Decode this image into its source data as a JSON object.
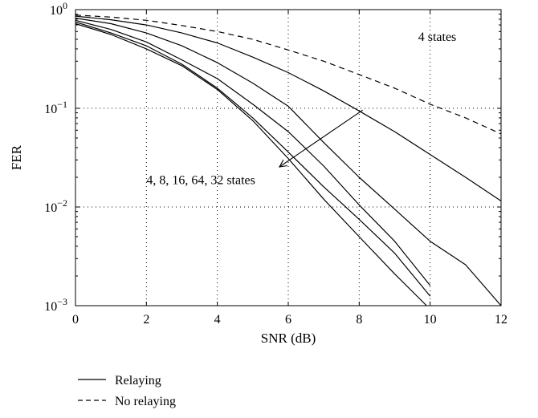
{
  "chart_data": {
    "type": "line",
    "xlabel": "SNR (dB)",
    "ylabel": "FER",
    "xlim": [
      0,
      12
    ],
    "ylim": [
      0.001,
      1
    ],
    "yscale": "log",
    "grid": true,
    "xticks": [
      "0",
      "2",
      "4",
      "6",
      "8",
      "10",
      "12"
    ],
    "yticks": [
      {
        "base": "10",
        "exp": "0",
        "value": 1
      },
      {
        "base": "10",
        "exp": "−1",
        "value": 0.1
      },
      {
        "base": "10",
        "exp": "−2",
        "value": 0.01
      },
      {
        "base": "10",
        "exp": "−3",
        "value": 0.001
      }
    ],
    "annotations": {
      "no_relaying_label": "4 states",
      "relaying_label": "4, 8, 16, 64, 32 states",
      "arrow_from": [
        8.1,
        0.096
      ],
      "arrow_to": [
        5.75,
        0.0255
      ]
    },
    "legend": {
      "placement": "bottom-left",
      "entries": [
        {
          "label": "Relaying",
          "style": "solid"
        },
        {
          "label": "No relaying",
          "style": "dashed"
        }
      ]
    },
    "series": [
      {
        "style": "dashed",
        "x": [
          0,
          1,
          2,
          3,
          4,
          5,
          6,
          7,
          8,
          9,
          10,
          11,
          12
        ],
        "values": [
          0.88,
          0.84,
          0.78,
          0.69,
          0.6,
          0.5,
          0.39,
          0.3,
          0.22,
          0.16,
          0.11,
          0.08,
          0.055
        ]
      },
      {
        "style": "solid",
        "x": [
          0,
          1,
          2,
          3,
          4,
          5,
          6,
          7,
          8,
          9,
          10,
          11,
          12
        ],
        "values": [
          0.86,
          0.79,
          0.7,
          0.58,
          0.46,
          0.33,
          0.23,
          0.15,
          0.094,
          0.058,
          0.034,
          0.02,
          0.0115
        ]
      },
      {
        "style": "solid",
        "x": [
          0,
          1,
          2,
          3,
          4,
          5,
          6,
          7,
          8,
          9,
          10,
          11,
          12
        ],
        "values": [
          0.82,
          0.72,
          0.58,
          0.43,
          0.29,
          0.18,
          0.105,
          0.045,
          0.02,
          0.0095,
          0.0045,
          0.0026,
          0.001
        ]
      },
      {
        "style": "solid",
        "x": [
          0,
          1,
          2,
          3,
          4,
          5,
          6,
          7,
          8,
          9,
          10
        ],
        "values": [
          0.78,
          0.63,
          0.47,
          0.31,
          0.2,
          0.11,
          0.058,
          0.026,
          0.0105,
          0.0045,
          0.0016
        ]
      },
      {
        "style": "solid",
        "x": [
          0,
          1,
          2,
          3,
          4,
          5,
          6,
          7,
          8,
          9,
          10
        ],
        "values": [
          0.75,
          0.58,
          0.43,
          0.28,
          0.16,
          0.08,
          0.036,
          0.016,
          0.0075,
          0.0034,
          0.00125
        ]
      },
      {
        "style": "solid",
        "x": [
          0,
          1,
          2,
          3,
          4,
          5,
          6,
          7,
          8,
          9,
          9.9
        ],
        "values": [
          0.72,
          0.56,
          0.4,
          0.27,
          0.155,
          0.075,
          0.031,
          0.012,
          0.005,
          0.0021,
          0.001
        ]
      }
    ]
  }
}
